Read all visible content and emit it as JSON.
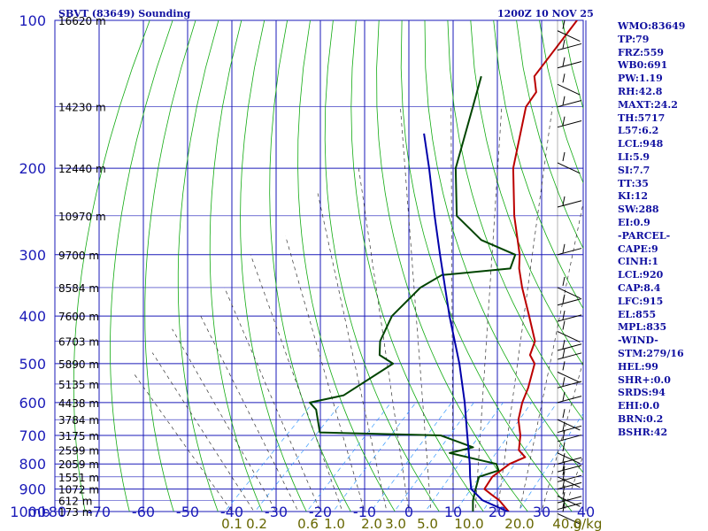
{
  "header": {
    "station": "SBVT (83649) Sounding",
    "time": "1200Z 10 NOV 25"
  },
  "indices": [
    "WMO:83649",
    "TP:79",
    "FRZ:559",
    "WB0:691",
    "PW:1.19",
    "RH:42.8",
    "MAXT:24.2",
    "TH:5717",
    "L57:6.2",
    "LCL:948",
    "LI:5.9",
    "SI:7.7",
    "TT:35",
    "KI:12",
    "SW:288",
    "EI:0.9",
    "-PARCEL-",
    "CAPE:9",
    "CINH:1",
    "LCL:920",
    "CAP:8.4",
    "LFC:915",
    "EL:855",
    "MPL:835",
    "-WIND-",
    "STM:279/16",
    "HEL:99",
    "SHR+:0.0",
    "SRDS:94",
    "EHI:0.0",
    "BRN:0.2",
    "BSHR:42"
  ],
  "colors": {
    "background": "#ffffff",
    "grid": "#1a1ab8",
    "dry_adiabat": "#11aa11",
    "moist_adiabat": "#333333",
    "mixing_ratio": "#3399ff",
    "temperature": "#bb0000",
    "dewpoint": "#004400",
    "parcel": "#0000aa",
    "text": "#1010a0",
    "mixing_label": "#666600"
  },
  "chart_data": {
    "type": "line",
    "title": "SBVT (83649) Sounding",
    "subtitle": "1200Z 10 NOV 25",
    "pressure_unit_label": "mb",
    "pressure_levels": [
      100,
      200,
      300,
      400,
      500,
      600,
      700,
      800,
      900,
      1000
    ],
    "pressure_labels": [
      "100",
      "200",
      "300",
      "400",
      "500",
      "600",
      "700",
      "800",
      "900",
      "1000"
    ],
    "temperature_range": [
      -80,
      40
    ],
    "temperature_ticks": [
      -80,
      -70,
      -60,
      -50,
      -40,
      -30,
      -20,
      -10,
      0,
      10,
      20,
      30,
      40
    ],
    "temperature_labels": [
      "-80",
      "-70",
      "-60",
      "-50",
      "-40",
      "-30",
      "-20",
      "-10",
      "0",
      "10",
      "20",
      "30",
      "40"
    ],
    "height_labels": [
      {
        "p": 100,
        "text": "16620 m"
      },
      {
        "p": 150,
        "text": "14230 m"
      },
      {
        "p": 200,
        "text": "12440 m"
      },
      {
        "p": 250,
        "text": "10970 m"
      },
      {
        "p": 300,
        "text": "9700 m"
      },
      {
        "p": 350,
        "text": "8584 m"
      },
      {
        "p": 400,
        "text": "7600 m"
      },
      {
        "p": 450,
        "text": "6703 m"
      },
      {
        "p": 500,
        "text": "5890 m"
      },
      {
        "p": 550,
        "text": "5135 m"
      },
      {
        "p": 600,
        "text": "4438 m"
      },
      {
        "p": 650,
        "text": "3784 m"
      },
      {
        "p": 700,
        "text": "3175 m"
      },
      {
        "p": 750,
        "text": "2599 m"
      },
      {
        "p": 800,
        "text": "2059 m"
      },
      {
        "p": 850,
        "text": "1551 m"
      },
      {
        "p": 900,
        "text": "1072 m"
      },
      {
        "p": 950,
        "text": "612 m"
      },
      {
        "p": 1000,
        "text": "173 m"
      }
    ],
    "mixing_ratio_labels": [
      "0.1",
      "0.2",
      "0.6",
      "1.0",
      "2.0",
      "3.0",
      "5.0",
      "10.0",
      "20.0",
      "40.0",
      "g/kg"
    ],
    "series": [
      {
        "name": "Temperature",
        "points": [
          {
            "p": 1011,
            "t": 23.5
          },
          {
            "p": 950,
            "t": 18
          },
          {
            "p": 925,
            "t": 15
          },
          {
            "p": 900,
            "t": 12
          },
          {
            "p": 850,
            "t": 11
          },
          {
            "p": 800,
            "t": 12
          },
          {
            "p": 775,
            "t": 14
          },
          {
            "p": 750,
            "t": 11
          },
          {
            "p": 700,
            "t": 8
          },
          {
            "p": 650,
            "t": 4
          },
          {
            "p": 600,
            "t": 1
          },
          {
            "p": 560,
            "t": -1
          },
          {
            "p": 500,
            "t": -5
          },
          {
            "p": 480,
            "t": -8
          },
          {
            "p": 450,
            "t": -10
          },
          {
            "p": 400,
            "t": -17
          },
          {
            "p": 350,
            "t": -25
          },
          {
            "p": 320,
            "t": -30
          },
          {
            "p": 300,
            "t": -33
          },
          {
            "p": 250,
            "t": -43
          },
          {
            "p": 200,
            "t": -54
          },
          {
            "p": 150,
            "t": -65
          },
          {
            "p": 140,
            "t": -66
          },
          {
            "p": 130,
            "t": -70
          },
          {
            "p": 100,
            "t": -73
          }
        ]
      },
      {
        "name": "Dewpoint",
        "points": [
          {
            "p": 1011,
            "t": 15
          },
          {
            "p": 950,
            "t": 12
          },
          {
            "p": 900,
            "t": 10
          },
          {
            "p": 850,
            "t": 8
          },
          {
            "p": 825,
            "t": 11
          },
          {
            "p": 800,
            "t": 9
          },
          {
            "p": 760,
            "t": -4
          },
          {
            "p": 740,
            "t": 0
          },
          {
            "p": 700,
            "t": -10
          },
          {
            "p": 690,
            "t": -38
          },
          {
            "p": 620,
            "t": -44
          },
          {
            "p": 600,
            "t": -47
          },
          {
            "p": 580,
            "t": -41
          },
          {
            "p": 500,
            "t": -37
          },
          {
            "p": 480,
            "t": -42
          },
          {
            "p": 450,
            "t": -45
          },
          {
            "p": 400,
            "t": -48
          },
          {
            "p": 350,
            "t": -48
          },
          {
            "p": 330,
            "t": -46
          },
          {
            "p": 320,
            "t": -32
          },
          {
            "p": 300,
            "t": -34
          },
          {
            "p": 280,
            "t": -45
          },
          {
            "p": 250,
            "t": -56
          },
          {
            "p": 200,
            "t": -67
          },
          {
            "p": 150,
            "t": -77
          },
          {
            "p": 130,
            "t": -82
          }
        ]
      },
      {
        "name": "Parcel",
        "points": [
          {
            "p": 1011,
            "t": 24
          },
          {
            "p": 948,
            "t": 14
          },
          {
            "p": 900,
            "t": 9
          },
          {
            "p": 850,
            "t": 6
          },
          {
            "p": 800,
            "t": 3
          },
          {
            "p": 700,
            "t": -4
          },
          {
            "p": 600,
            "t": -12
          },
          {
            "p": 500,
            "t": -22
          },
          {
            "p": 400,
            "t": -35
          },
          {
            "p": 300,
            "t": -51
          },
          {
            "p": 250,
            "t": -61
          },
          {
            "p": 200,
            "t": -73
          },
          {
            "p": 170,
            "t": -82
          }
        ]
      }
    ],
    "wind_profile_note": "wind barbs shown at right along pressure axis"
  }
}
